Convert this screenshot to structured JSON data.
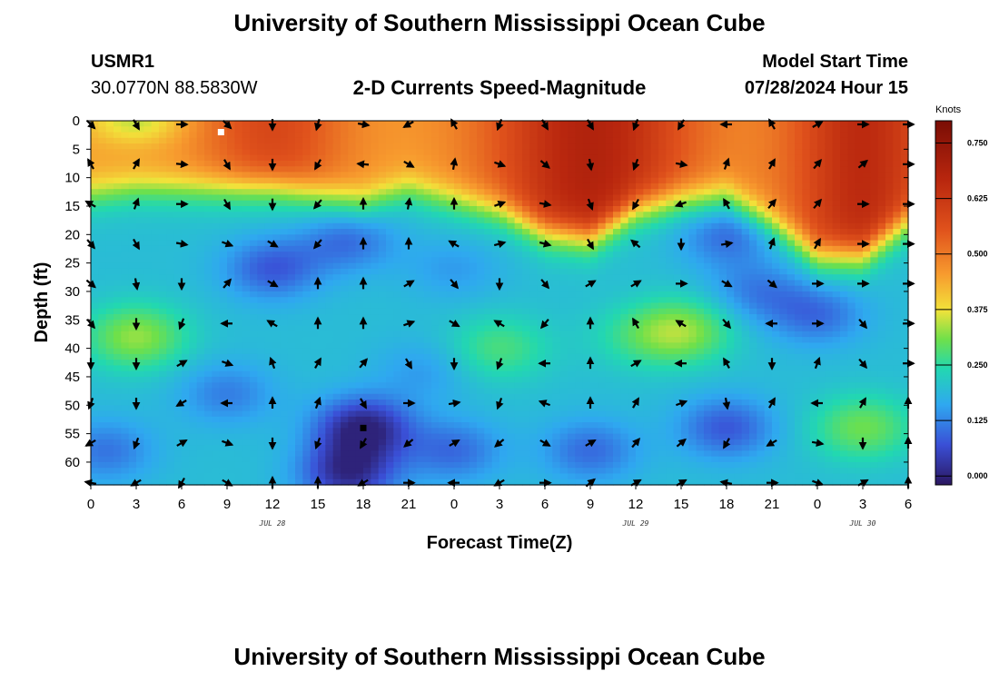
{
  "header": {
    "title": "University of Southern Mississippi Ocean Cube",
    "station_id": "USMR1",
    "station_coords": "30.0770N  88.5830W",
    "subtitle": "2-D Currents Speed-Magnitude",
    "model_start_label": "Model Start Time",
    "model_start_value": "07/28/2024 Hour 15"
  },
  "footer": {
    "title": "University of Southern Mississippi Ocean Cube"
  },
  "colors": {
    "scale": [
      "#2b1760",
      "#3a4fd6",
      "#2fa8f0",
      "#22d8b0",
      "#6fe04a",
      "#f2e23a",
      "#f79a2e",
      "#e0521c",
      "#b8260e",
      "#7a0d05"
    ]
  },
  "chart_data": {
    "type": "heatmap",
    "title": "2-D Currents Speed-Magnitude",
    "xlabel": "Forecast Time(Z)",
    "ylabel": "Depth (ft)",
    "x_tick_labels": [
      "0",
      "3",
      "6",
      "9",
      "12",
      "15",
      "18",
      "21",
      "0",
      "3",
      "6",
      "9",
      "12",
      "15",
      "18",
      "21",
      "0",
      "3",
      "6"
    ],
    "x_hours": [
      0,
      3,
      6,
      9,
      12,
      15,
      18,
      21,
      24,
      27,
      30,
      33,
      36,
      39,
      42,
      45,
      48,
      51,
      54
    ],
    "date_labels": [
      {
        "text": "JUL 28",
        "hour": 12
      },
      {
        "text": "JUL 29",
        "hour": 36
      },
      {
        "text": "JUL 30",
        "hour": 51
      }
    ],
    "y_ticks": [
      0,
      5,
      10,
      15,
      20,
      25,
      30,
      35,
      40,
      45,
      50,
      55,
      60
    ],
    "y_tick_labels": [
      "0",
      "5",
      "10",
      "15",
      "20",
      "25",
      "30",
      "35",
      "40",
      "45",
      "50",
      "55",
      "60"
    ],
    "ylim": [
      0,
      64
    ],
    "xlim": [
      0,
      54
    ],
    "colorbar": {
      "unit": "Knots",
      "range": [
        -0.02,
        0.8
      ],
      "ticks": [
        0.0,
        0.125,
        0.25,
        0.375,
        0.5,
        0.625,
        0.75
      ],
      "tick_labels": [
        "0.000",
        "0.125",
        "0.250",
        "0.375",
        "0.500",
        "0.625",
        "0.750"
      ]
    },
    "surface_layer_base_depth_ft": [
      13,
      12,
      12,
      12,
      12,
      13,
      14,
      12,
      14,
      16,
      20,
      21,
      16,
      14,
      13,
      18,
      24,
      24,
      18
    ],
    "speed_features": [
      {
        "hour": 17,
        "depth_ft": 21,
        "speed": 0.1
      },
      {
        "hour": 12,
        "depth_ft": 26,
        "speed": 0.08
      },
      {
        "hour": 24,
        "depth_ft": 26,
        "speed": 0.15
      },
      {
        "hour": 42,
        "depth_ft": 20,
        "speed": 0.1
      },
      {
        "hour": 44,
        "depth_ft": 30,
        "speed": 0.12
      },
      {
        "hour": 48,
        "depth_ft": 34,
        "speed": 0.1
      },
      {
        "hour": 3,
        "depth_ft": 38,
        "speed": 0.37
      },
      {
        "hour": 39,
        "depth_ft": 37,
        "speed": 0.37
      },
      {
        "hour": 18,
        "depth_ft": 54,
        "speed": 0.0
      },
      {
        "hour": 17,
        "depth_ft": 62,
        "speed": 0.02
      },
      {
        "hour": 42,
        "depth_ft": 54,
        "speed": 0.08
      },
      {
        "hour": 51,
        "depth_ft": 54,
        "speed": 0.34
      },
      {
        "hour": 36,
        "depth_ft": 38,
        "speed": 0.26
      },
      {
        "hour": 24,
        "depth_ft": 58,
        "speed": 0.1
      },
      {
        "hour": 33,
        "depth_ft": 58,
        "speed": 0.1
      },
      {
        "hour": 9,
        "depth_ft": 48,
        "speed": 0.12
      },
      {
        "hour": 1,
        "depth_ft": 58,
        "speed": 0.11
      },
      {
        "hour": 27,
        "depth_ft": 40,
        "speed": 0.3
      },
      {
        "hour": 22,
        "depth_ft": 44,
        "speed": 0.15
      }
    ],
    "vectors": {
      "hours": [
        0,
        3,
        6,
        9,
        12,
        15,
        18,
        21,
        24,
        27,
        30,
        33,
        36,
        39,
        42,
        45,
        48,
        51,
        54
      ],
      "depths_ft": [
        0,
        7,
        14,
        21,
        28,
        35,
        42,
        49,
        56,
        63
      ],
      "directions_deg": [
        [
          135,
          150,
          90,
          135,
          180,
          195,
          100,
          240,
          330,
          200,
          150,
          150,
          200,
          210,
          270,
          330,
          60,
          90,
          90
        ],
        [
          330,
          30,
          95,
          150,
          180,
          210,
          275,
          120,
          10,
          110,
          130,
          170,
          200,
          100,
          20,
          30,
          40,
          50,
          90
        ],
        [
          300,
          20,
          90,
          150,
          180,
          220,
          0,
          10,
          0,
          70,
          100,
          160,
          210,
          250,
          330,
          40,
          40,
          90,
          90
        ],
        [
          140,
          150,
          100,
          110,
          120,
          220,
          0,
          0,
          300,
          75,
          105,
          150,
          310,
          180,
          80,
          20,
          30,
          90,
          90
        ],
        [
          130,
          170,
          180,
          40,
          120,
          0,
          0,
          60,
          140,
          180,
          140,
          60,
          60,
          90,
          120,
          130,
          90,
          90,
          90
        ],
        [
          140,
          180,
          200,
          270,
          300,
          0,
          0,
          70,
          120,
          300,
          220,
          0,
          330,
          300,
          140,
          270,
          90,
          140,
          90
        ],
        [
          180,
          180,
          60,
          110,
          340,
          30,
          40,
          150,
          180,
          200,
          270,
          0,
          60,
          270,
          330,
          180,
          20,
          140,
          90
        ],
        [
          200,
          180,
          240,
          270,
          0,
          20,
          150,
          90,
          80,
          200,
          290,
          0,
          30,
          70,
          170,
          30,
          270,
          30,
          0
        ],
        [
          240,
          200,
          60,
          110,
          180,
          200,
          210,
          230,
          60,
          230,
          120,
          60,
          40,
          50,
          210,
          240,
          100,
          180,
          0
        ],
        [
          280,
          240,
          210,
          120,
          0,
          0,
          240,
          90,
          270,
          240,
          90,
          50,
          60,
          60,
          280,
          90,
          110,
          60,
          0
        ]
      ]
    },
    "markers": [
      {
        "hour": 8.6,
        "depth_ft": 2,
        "color": "white"
      },
      {
        "hour": 18,
        "depth_ft": 54,
        "color": "black"
      }
    ]
  }
}
